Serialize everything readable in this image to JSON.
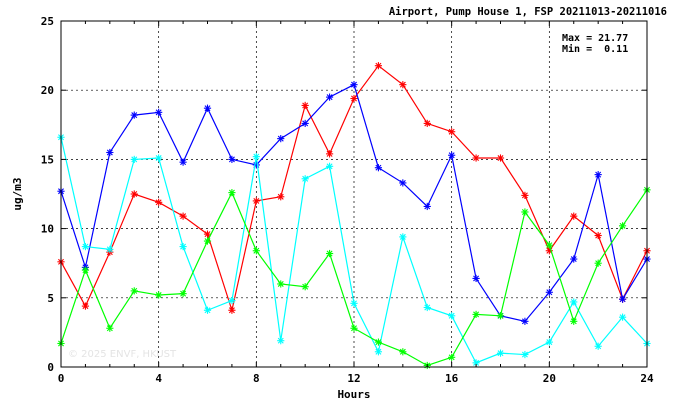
{
  "chart_data": {
    "type": "line",
    "title": "Airport, Pump House 1, FSP 20211013-20211016",
    "xlabel": "Hours",
    "ylabel": "ug/m3",
    "xlim": [
      0,
      24
    ],
    "ylim": [
      0,
      25
    ],
    "x_ticks": [
      0,
      4,
      8,
      12,
      16,
      20,
      24
    ],
    "y_ticks": [
      0,
      5,
      10,
      15,
      20,
      25
    ],
    "grid": true,
    "stats": {
      "max_text": "Max = 21.77",
      "min_text": "Min =  0.11"
    },
    "watermark": "© 2025 ENVF, HKUST",
    "x": [
      0,
      1,
      2,
      3,
      4,
      5,
      6,
      7,
      8,
      9,
      10,
      11,
      12,
      13,
      14,
      15,
      16,
      17,
      18,
      19,
      20,
      21,
      22,
      23,
      24
    ],
    "series": [
      {
        "color": "#ff0000",
        "values": [
          7.6,
          4.4,
          8.3,
          12.5,
          11.9,
          10.9,
          9.6,
          4.1,
          12.0,
          12.3,
          18.9,
          15.4,
          19.4,
          21.77,
          20.4,
          17.6,
          17.0,
          15.1,
          15.1,
          12.4,
          8.4,
          10.9,
          9.5,
          4.9,
          8.4
        ]
      },
      {
        "color": "#0000ff",
        "values": [
          12.7,
          7.2,
          15.5,
          18.2,
          18.4,
          14.8,
          18.7,
          15.0,
          14.6,
          16.5,
          17.6,
          19.5,
          20.4,
          14.4,
          13.3,
          11.6,
          15.3,
          6.4,
          3.7,
          3.3,
          5.4,
          7.8,
          13.9,
          4.9,
          7.8
        ]
      },
      {
        "color": "#00ffff",
        "values": [
          16.6,
          8.7,
          8.5,
          15.0,
          15.1,
          8.7,
          4.1,
          4.8,
          15.2,
          1.9,
          13.6,
          14.5,
          4.6,
          1.1,
          9.4,
          4.3,
          3.7,
          0.3,
          1.0,
          0.9,
          1.8,
          4.7,
          1.5,
          3.6,
          1.7
        ]
      },
      {
        "color": "#00ff00",
        "values": [
          1.7,
          7.0,
          2.8,
          5.5,
          5.2,
          5.3,
          9.1,
          12.6,
          8.4,
          6.0,
          5.8,
          8.2,
          2.8,
          1.8,
          1.1,
          0.11,
          0.7,
          3.8,
          3.7,
          11.2,
          8.8,
          3.3,
          7.5,
          10.2,
          12.8
        ]
      }
    ]
  }
}
